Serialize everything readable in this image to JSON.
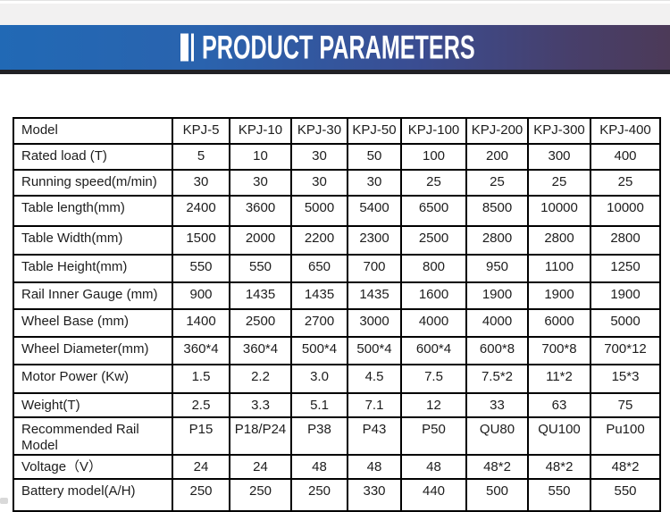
{
  "banner": {
    "title": "PRODUCT PARAMETERS"
  },
  "colors": {
    "banner_gradient_left": "#2169b5",
    "banner_gradient_right": "#4c3a58",
    "banner_underline": "#212125",
    "top_strip": "#f2f1f1",
    "table_border": "#000000",
    "table_text": "#1d1d1d",
    "banner_text": "#ffffff"
  },
  "table": {
    "header": [
      "Model",
      "KPJ-5",
      "KPJ-10",
      "KPJ-30",
      "KPJ-50",
      "KPJ-100",
      "KPJ-200",
      "KPJ-300",
      "KPJ-400"
    ],
    "rows": [
      {
        "label": "Rated load (T)",
        "values": [
          "5",
          "10",
          "30",
          "50",
          "100",
          "200",
          "300",
          "400"
        ]
      },
      {
        "label": "Running speed(m/min)",
        "values": [
          "30",
          "30",
          "30",
          "30",
          "25",
          "25",
          "25",
          "25"
        ]
      },
      {
        "label": "Table length(mm)",
        "values": [
          "2400",
          "3600",
          "5000",
          "5400",
          "6500",
          "8500",
          "10000",
          "10000"
        ]
      },
      {
        "label": "Table Width(mm)",
        "values": [
          "1500",
          "2000",
          "2200",
          "2300",
          "2500",
          "2800",
          "2800",
          "2800"
        ]
      },
      {
        "label": "Table Height(mm)",
        "values": [
          "550",
          "550",
          "650",
          "700",
          "800",
          "950",
          "1100",
          "1250"
        ]
      },
      {
        "label": "Rail Inner Gauge (mm)",
        "values": [
          "900",
          "1435",
          "1435",
          "1435",
          "1600",
          "1900",
          "1900",
          "1900"
        ]
      },
      {
        "label": "Wheel Base (mm)",
        "values": [
          "1400",
          "2500",
          "2700",
          "3000",
          "4000",
          "4000",
          "6000",
          "5000"
        ]
      },
      {
        "label": "Wheel Diameter(mm)",
        "values": [
          "360*4",
          "360*4",
          "500*4",
          "500*4",
          "600*4",
          "600*8",
          "700*8",
          "700*12"
        ]
      },
      {
        "label": "Motor Power (Kw)",
        "values": [
          "1.5",
          "2.2",
          "3.0",
          "4.5",
          "7.5",
          "7.5*2",
          "11*2",
          "15*3"
        ]
      },
      {
        "label": "Weight(T)",
        "values": [
          "2.5",
          "3.3",
          "5.1",
          "7.1",
          "12",
          "33",
          "63",
          "75"
        ]
      },
      {
        "label": "Recommended Rail Model",
        "values": [
          "P15",
          "P18/P24",
          "P38",
          "P43",
          "P50",
          "QU80",
          "QU100",
          "Pu100"
        ]
      },
      {
        "label": "Voltage（V）",
        "values": [
          "24",
          "24",
          "48",
          "48",
          "48",
          "48*2",
          "48*2",
          "48*2"
        ]
      },
      {
        "label": "Battery model(A/H)",
        "values": [
          "250",
          "250",
          "250",
          "330",
          "440",
          "500",
          "550",
          "550"
        ]
      }
    ]
  }
}
